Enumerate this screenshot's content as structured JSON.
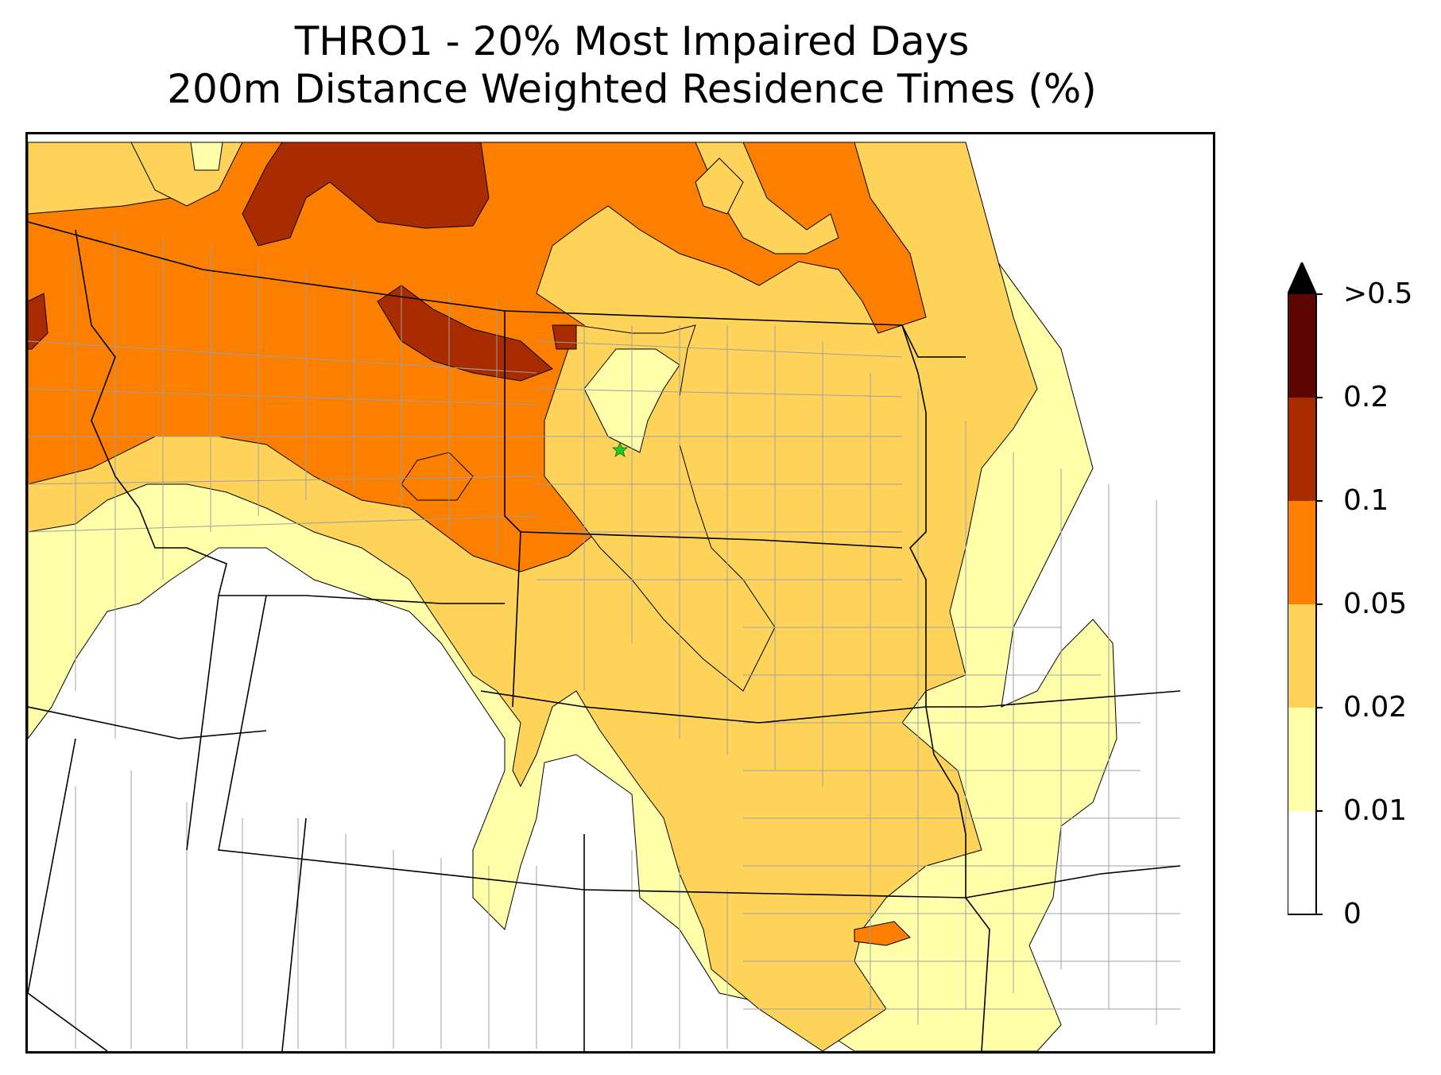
{
  "title": {
    "line1": "THRO1 - 20% Most Impaired Days",
    "line2": "200m Distance Weighted Residence Times (%)"
  },
  "colorbar": {
    "ticks": [
      {
        "label": "0",
        "value": 0
      },
      {
        "label": "0.01",
        "value": 0.01
      },
      {
        "label": "0.02",
        "value": 0.02
      },
      {
        "label": "0.05",
        "value": 0.05
      },
      {
        "label": "0.1",
        "value": 0.1
      },
      {
        "label": "0.2",
        "value": 0.2
      },
      {
        "label": ">0.5",
        "value": 0.5
      }
    ],
    "bins": [
      {
        "range": "0-0.01",
        "color": "#ffffff"
      },
      {
        "range": "0.01-0.02",
        "color": "#ffffaa"
      },
      {
        "range": "0.02-0.05",
        "color": "#fdd35a"
      },
      {
        "range": "0.05-0.1",
        "color": "#fc7f00"
      },
      {
        "range": "0.1-0.2",
        "color": "#a82c00"
      },
      {
        "range": "0.2-0.5",
        "color": "#5b0600"
      },
      {
        "range": ">0.5",
        "color": "#000000"
      }
    ],
    "extend": "max"
  },
  "colors": {
    "level_0": "#ffffff",
    "level_1": "#ffffaa",
    "level_2": "#fdd35a",
    "level_3": "#fc7f00",
    "level_4": "#a82c00",
    "county_lines": "#a0a0a0",
    "state_lines": "#000000",
    "site_marker": "#22cc22"
  },
  "site_marker": {
    "icon": "green-star-icon"
  }
}
